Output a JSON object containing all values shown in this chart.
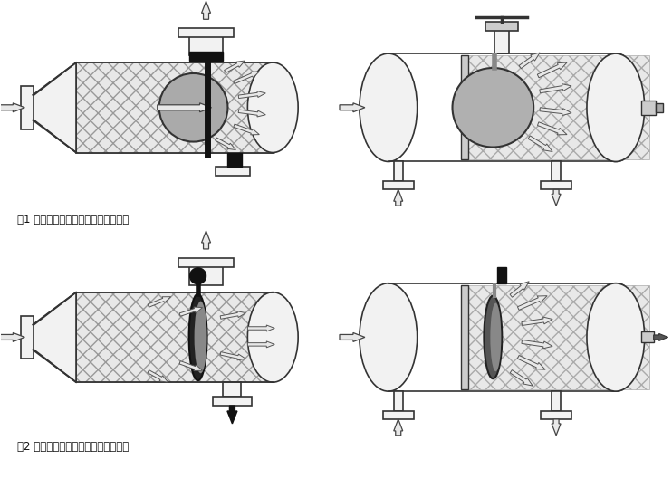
{
  "fig_width": 7.42,
  "fig_height": 5.29,
  "dpi": 100,
  "bg_color": "#ffffff",
  "label1": "图1 正常过滤状态（水流导向阀开启）",
  "label2": "图2 反洗排污状态（水流导向阀关闭）",
  "text_color": "#111111",
  "lc": "#333333",
  "fc_hatch": "#e8e8e8",
  "fc_body": "#f2f2f2",
  "fc_disk": "#b0b0b0",
  "fc_blade": "#333333",
  "fc_black": "#111111",
  "fc_white": "#ffffff",
  "arrow_fc": "#e8e8e8",
  "arrow_ec": "#444444"
}
